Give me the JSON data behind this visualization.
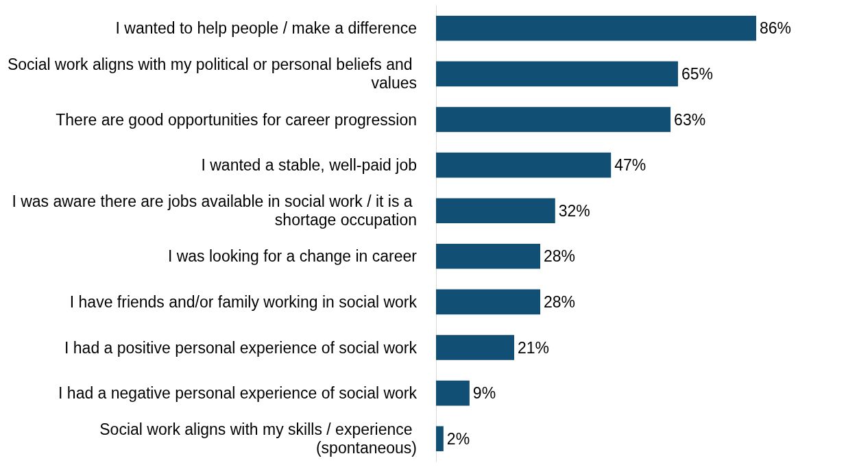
{
  "chart_data": {
    "type": "bar",
    "orientation": "horizontal",
    "categories": [
      "I wanted to help people / make a difference",
      "Social work aligns with my political or personal beliefs and values",
      "There are good opportunities for career progression",
      "I wanted a stable, well-paid job",
      "I was aware there are jobs available in social work / it is a shortage occupation",
      "I was looking for a change in career",
      "I have friends and/or family working in social work",
      "I had a positive personal experience of social work",
      "I had a negative personal experience of social work",
      "Social work aligns with my skills / experience (spontaneous)"
    ],
    "values": [
      86,
      65,
      63,
      47,
      32,
      28,
      28,
      21,
      9,
      2
    ],
    "value_labels": [
      "86%",
      "65%",
      "63%",
      "47%",
      "32%",
      "28%",
      "28%",
      "21%",
      "9%",
      "2%"
    ],
    "color": "#124f75",
    "tick_labels": "y"
  }
}
